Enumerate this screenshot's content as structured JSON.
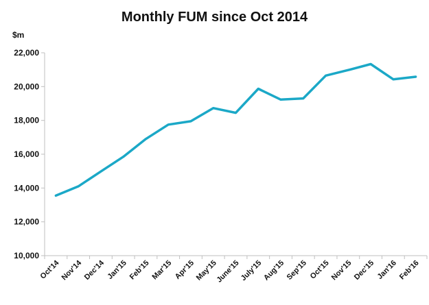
{
  "chart_data": {
    "type": "line",
    "title": "Monthly FUM since Oct 2014",
    "ylabel": "$m",
    "xlabel": "",
    "ylim": [
      10000,
      22000
    ],
    "yticks": [
      10000,
      12000,
      14000,
      16000,
      18000,
      20000,
      22000
    ],
    "ytick_labels": [
      "10,000",
      "12,000",
      "14,000",
      "16,000",
      "18,000",
      "20,000",
      "22,000"
    ],
    "categories": [
      "Oct'14",
      "Nov'14",
      "Dec'14",
      "Jan'15",
      "Feb'15",
      "Mar'15",
      "Apr'15",
      "May'15",
      "June'15",
      "July'15",
      "Aug'15",
      "Sep'15",
      "Oct'15",
      "Nov'15",
      "Dec'15",
      "Jan'16",
      "Feb'16"
    ],
    "series": [
      {
        "values": [
          13550,
          14100,
          14980,
          15850,
          16900,
          17750,
          17950,
          18730,
          18450,
          19870,
          19230,
          19300,
          20650,
          20980,
          21330,
          20430,
          20580
        ],
        "color": "#1ba8c7"
      }
    ],
    "grid": false,
    "legend": "none"
  }
}
